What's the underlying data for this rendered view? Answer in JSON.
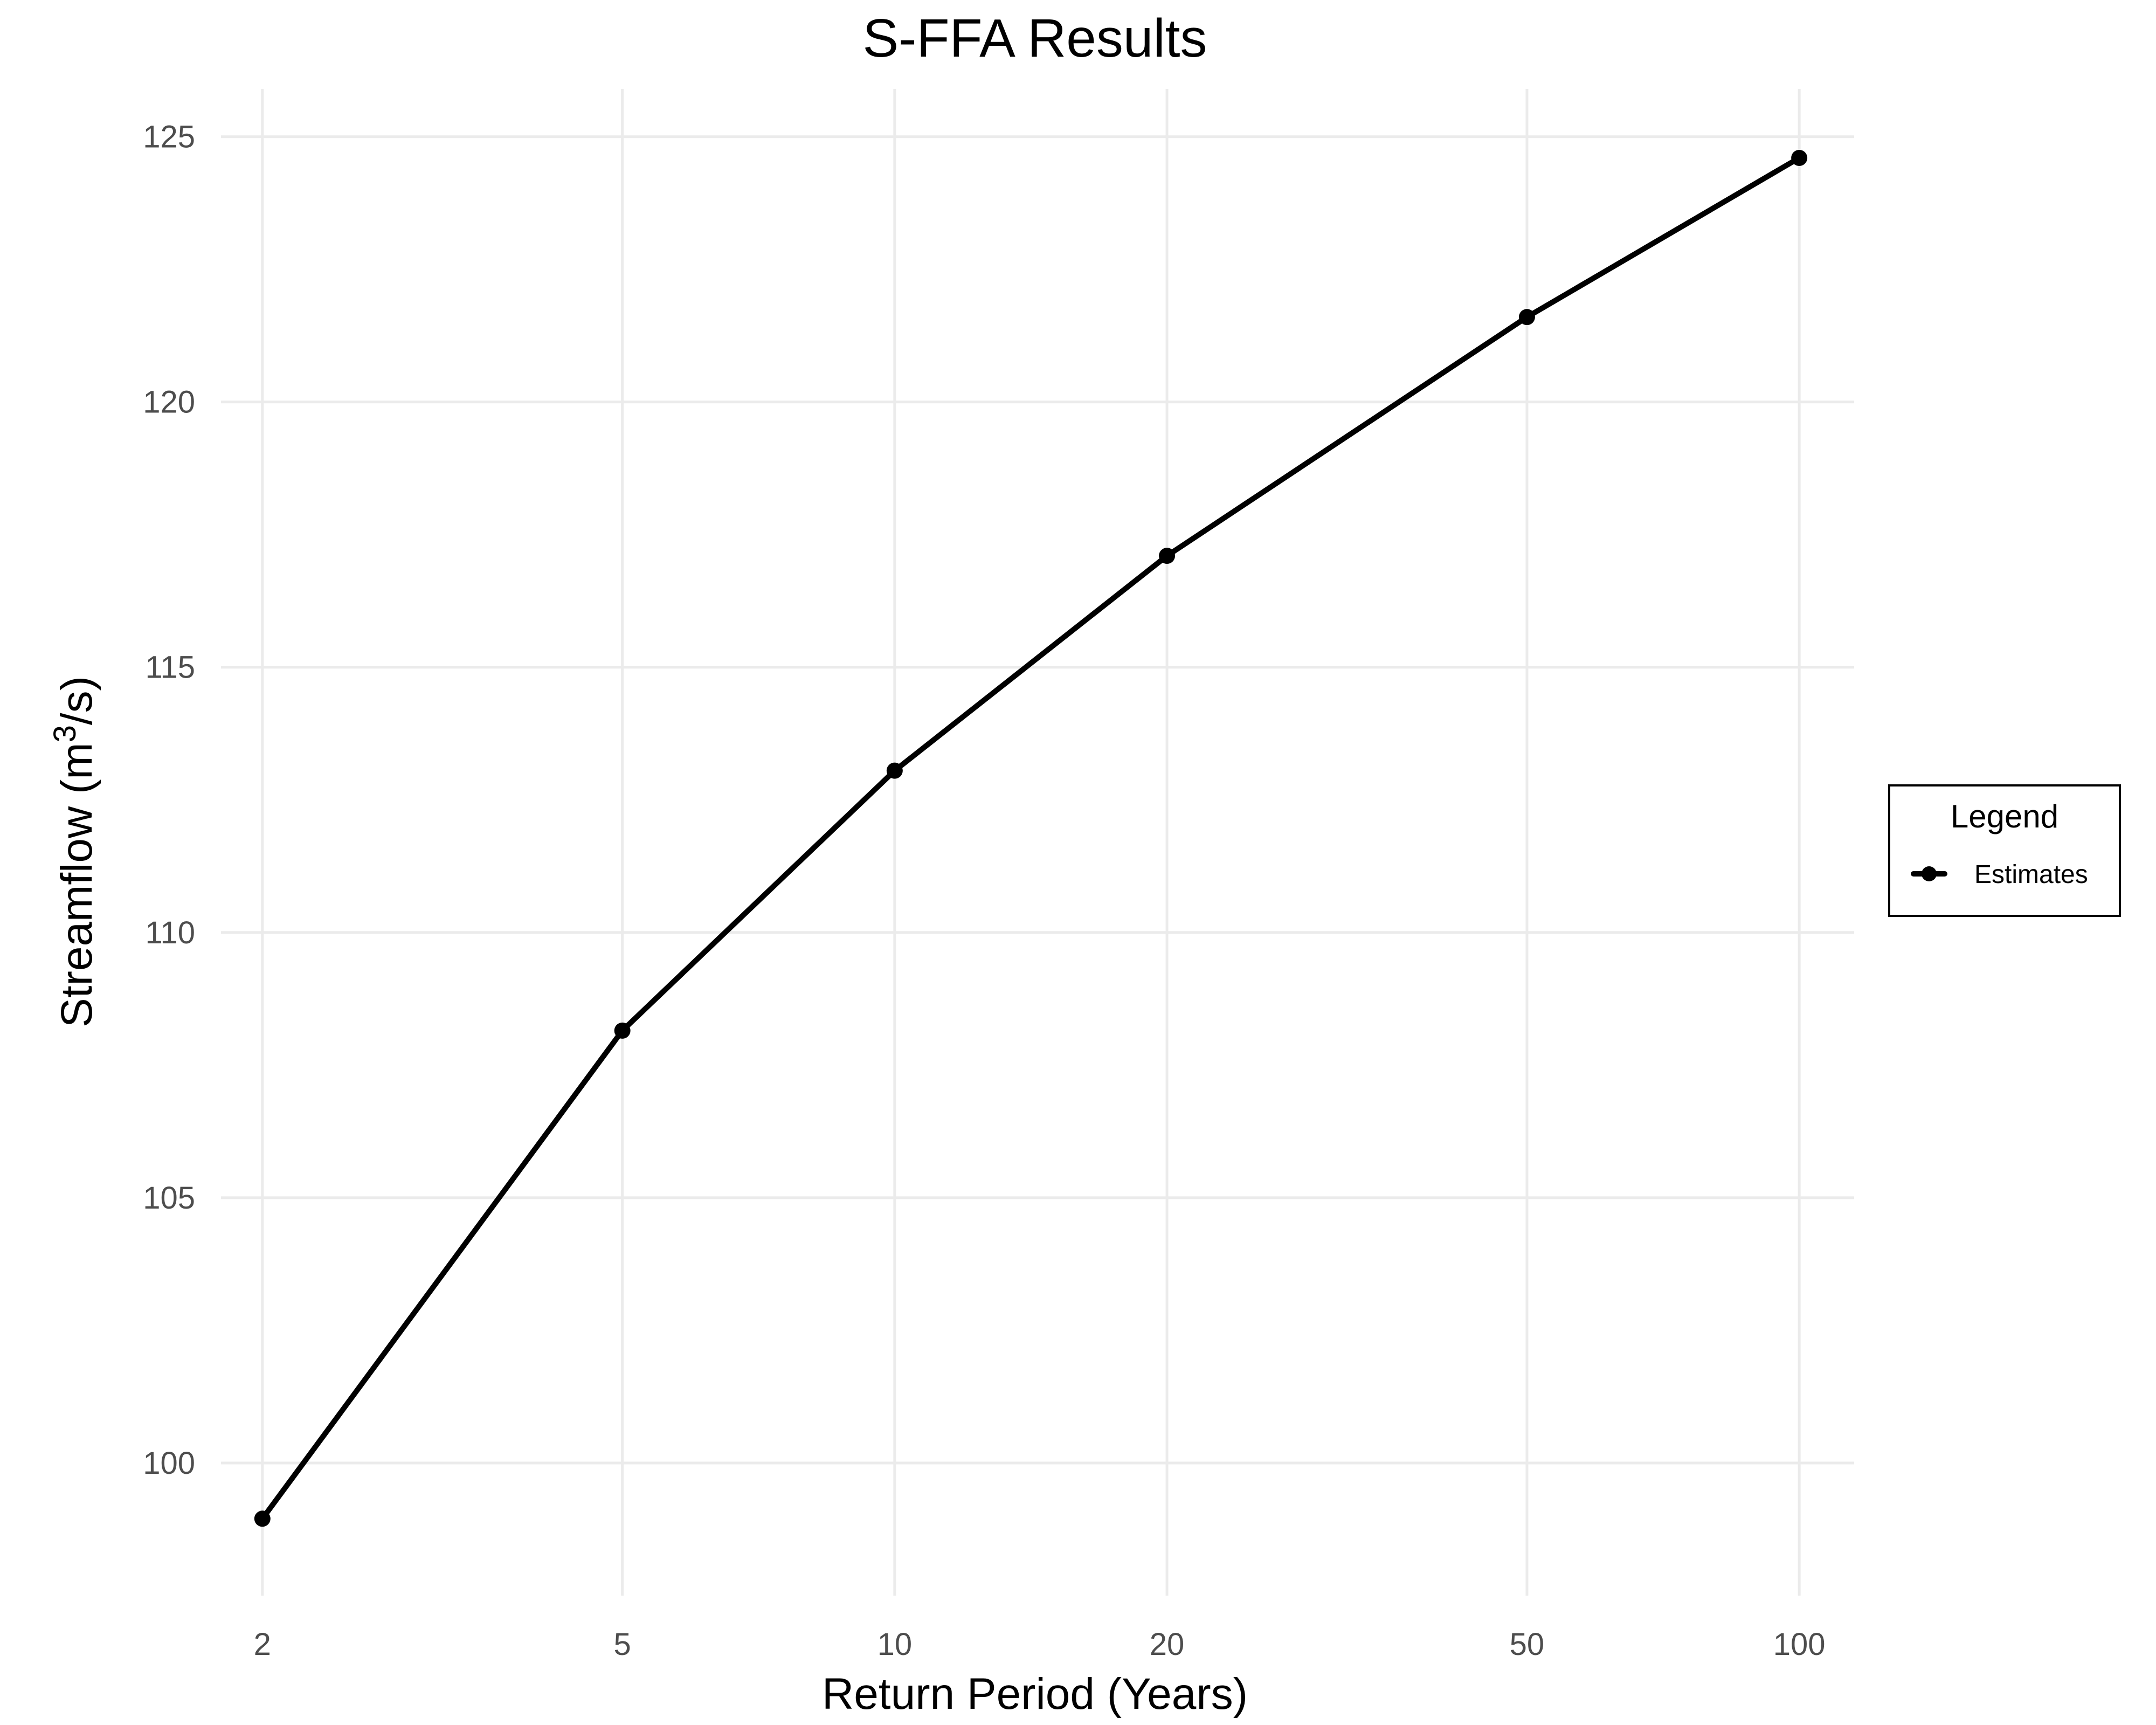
{
  "chart_data": {
    "type": "line",
    "title": "S-FFA Results",
    "xlabel": "Return Period (Years)",
    "ylabel_main": "Streamflow (m",
    "ylabel_sup": "3",
    "ylabel_tail": "/s)",
    "x_scale": "log",
    "x_ticks": [
      2,
      5,
      10,
      20,
      50,
      100
    ],
    "x_tick_labels": [
      "2",
      "5",
      "10",
      "20",
      "50",
      "100"
    ],
    "xlim": [
      1.8,
      115
    ],
    "y_ticks": [
      100,
      105,
      110,
      115,
      120,
      125
    ],
    "y_tick_labels": [
      "100",
      "105",
      "110",
      "115",
      "120",
      "125"
    ],
    "ylim": [
      97.5,
      125.9
    ],
    "grid": true,
    "legend": {
      "title": "Legend",
      "placement": "right",
      "entries": [
        "Estimates"
      ]
    },
    "series": [
      {
        "name": "Estimates",
        "color": "#000000",
        "x": [
          2,
          5,
          10,
          20,
          50,
          100
        ],
        "y": [
          98.95,
          108.15,
          113.05,
          117.1,
          121.6,
          124.6
        ]
      }
    ]
  }
}
